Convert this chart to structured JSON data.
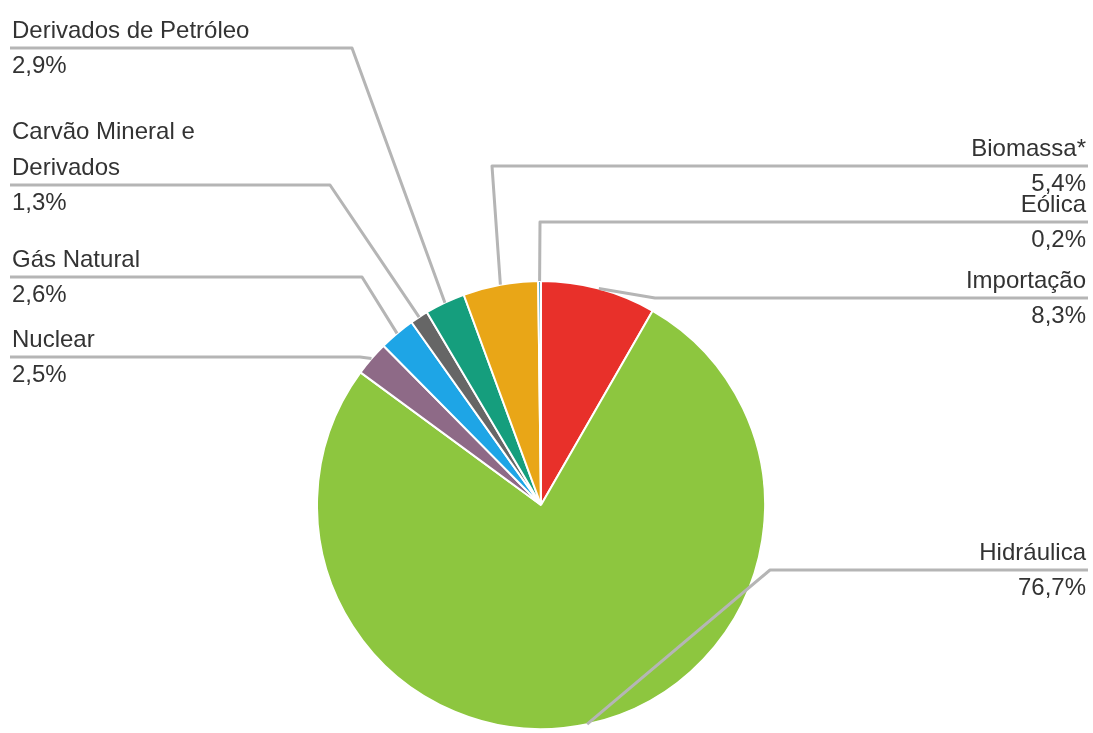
{
  "chart_data": {
    "type": "pie",
    "categories": [
      "Importação",
      "Hidráulica",
      "Nuclear",
      "Gás Natural",
      "Carvão Mineral e Derivados",
      "Derivados de Petróleo",
      "Biomassa*",
      "Eólica"
    ],
    "values": [
      8.3,
      76.7,
      2.5,
      2.6,
      1.3,
      2.9,
      5.4,
      0.2
    ],
    "value_labels": [
      "8,3%",
      "76,7%",
      "2,5%",
      "2,6%",
      "1,3%",
      "2,9%",
      "5,4%",
      "0,2%"
    ],
    "colors": [
      "#e8302a",
      "#8dc63f",
      "#8e6a87",
      "#1ea5e6",
      "#666666",
      "#159e7d",
      "#e9a617",
      "#2a8fbd"
    ],
    "legend": false
  }
}
